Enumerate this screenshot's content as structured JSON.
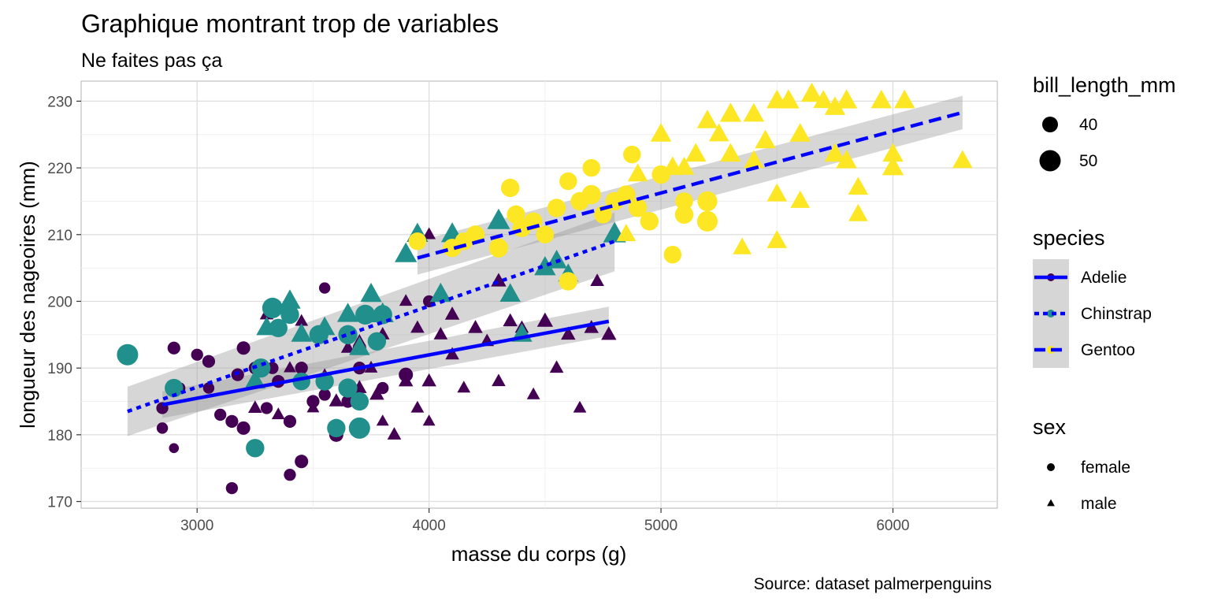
{
  "chart_data": {
    "type": "scatter",
    "title": "Graphique montrant trop de variables",
    "subtitle": "Ne faites pas ça",
    "caption": "Source: dataset palmerpenguins",
    "xlabel": "masse du corps (g)",
    "ylabel": "longueur des nageoires (mm)",
    "xlim": [
      2500,
      6450
    ],
    "ylim": [
      169,
      233
    ],
    "x_ticks": [
      3000,
      4000,
      5000,
      6000
    ],
    "y_ticks": [
      170,
      180,
      190,
      200,
      210,
      220,
      230
    ],
    "x_tick_labels": [
      "3000",
      "4000",
      "5000",
      "6000"
    ],
    "y_tick_labels": [
      "170",
      "180",
      "190",
      "200",
      "210",
      "220",
      "230"
    ],
    "grid": true,
    "colors": {
      "Adelie": "#440154",
      "Chinstrap": "#21908C",
      "Gentoo": "#FDE725",
      "trend": "#0000FF",
      "ribbon": "#999999"
    },
    "legends": {
      "size": {
        "title": "bill_length_mm",
        "entries": [
          {
            "label": "40",
            "value": 40
          },
          {
            "label": "50",
            "value": 50
          }
        ]
      },
      "species": {
        "title": "species",
        "entries": [
          {
            "label": "Adelie",
            "linetype": "solid"
          },
          {
            "label": "Chinstrap",
            "linetype": "dotted"
          },
          {
            "label": "Gentoo",
            "linetype": "dashed"
          }
        ]
      },
      "sex": {
        "title": "sex",
        "entries": [
          {
            "label": "female",
            "shape": "circle"
          },
          {
            "label": "male",
            "shape": "triangle"
          }
        ]
      }
    },
    "series": [
      {
        "name": "Adelie",
        "points": [
          [
            2850,
            184,
            37,
            "female"
          ],
          [
            2850,
            181,
            36,
            "female"
          ],
          [
            2900,
            178,
            34,
            "female"
          ],
          [
            2900,
            193,
            38,
            "female"
          ],
          [
            2925,
            187,
            36,
            "female"
          ],
          [
            3000,
            192,
            37,
            "female"
          ],
          [
            3050,
            191,
            38,
            "female"
          ],
          [
            3050,
            187,
            36,
            "female"
          ],
          [
            3100,
            183,
            37,
            "female"
          ],
          [
            3150,
            182,
            38,
            "female"
          ],
          [
            3150,
            172,
            37,
            "female"
          ],
          [
            3175,
            189,
            38,
            "female"
          ],
          [
            3200,
            193,
            39,
            "female"
          ],
          [
            3200,
            181,
            39,
            "female"
          ],
          [
            3250,
            190,
            38,
            "female"
          ],
          [
            3300,
            184,
            37,
            "female"
          ],
          [
            3325,
            190,
            37,
            "female"
          ],
          [
            3350,
            188,
            38,
            "female"
          ],
          [
            3400,
            174,
            37,
            "female"
          ],
          [
            3400,
            182,
            38,
            "female"
          ],
          [
            3450,
            176,
            39,
            "female"
          ],
          [
            3450,
            190,
            38,
            "female"
          ],
          [
            3500,
            185,
            38,
            "female"
          ],
          [
            3550,
            202,
            36,
            "female"
          ],
          [
            3550,
            186,
            37,
            "female"
          ],
          [
            3600,
            180,
            40,
            "female"
          ],
          [
            3650,
            185,
            38,
            "female"
          ],
          [
            3700,
            193,
            39,
            "female"
          ],
          [
            3700,
            190,
            38,
            "female"
          ],
          [
            3800,
            187,
            37,
            "female"
          ],
          [
            3900,
            189,
            40,
            "female"
          ],
          [
            4000,
            200,
            37,
            "female"
          ],
          [
            3250,
            184,
            40,
            "male"
          ],
          [
            3300,
            198,
            40,
            "male"
          ],
          [
            3350,
            183,
            39,
            "male"
          ],
          [
            3400,
            190,
            38,
            "male"
          ],
          [
            3450,
            197,
            39,
            "male"
          ],
          [
            3500,
            184,
            38,
            "male"
          ],
          [
            3550,
            189,
            37,
            "male"
          ],
          [
            3600,
            185,
            41,
            "male"
          ],
          [
            3650,
            193,
            40,
            "male"
          ],
          [
            3700,
            187,
            41,
            "male"
          ],
          [
            3700,
            194,
            39,
            "male"
          ],
          [
            3750,
            190,
            39,
            "male"
          ],
          [
            3775,
            186,
            41,
            "male"
          ],
          [
            3800,
            195,
            40,
            "male"
          ],
          [
            3800,
            182,
            38,
            "male"
          ],
          [
            3850,
            180,
            40,
            "male"
          ],
          [
            3900,
            188,
            41,
            "male"
          ],
          [
            3900,
            200,
            39,
            "male"
          ],
          [
            3950,
            184,
            39,
            "male"
          ],
          [
            3950,
            196,
            40,
            "male"
          ],
          [
            4000,
            182,
            38,
            "male"
          ],
          [
            4000,
            188,
            41,
            "male"
          ],
          [
            4000,
            210,
            39,
            "male"
          ],
          [
            4050,
            195,
            40,
            "male"
          ],
          [
            4100,
            198,
            41,
            "male"
          ],
          [
            4100,
            192,
            40,
            "male"
          ],
          [
            4150,
            187,
            39,
            "male"
          ],
          [
            4200,
            196,
            41,
            "male"
          ],
          [
            4250,
            194,
            40,
            "male"
          ],
          [
            4300,
            188,
            40,
            "male"
          ],
          [
            4300,
            203,
            42,
            "male"
          ],
          [
            4350,
            197,
            41,
            "male"
          ],
          [
            4400,
            196,
            40,
            "male"
          ],
          [
            4450,
            186,
            39,
            "male"
          ],
          [
            4500,
            197,
            43,
            "male"
          ],
          [
            4550,
            190,
            40,
            "male"
          ],
          [
            4600,
            195,
            41,
            "male"
          ],
          [
            4650,
            184,
            39,
            "male"
          ],
          [
            4700,
            196,
            41,
            "male"
          ],
          [
            4725,
            203,
            40,
            "male"
          ],
          [
            4775,
            195,
            42,
            "male"
          ]
        ]
      },
      {
        "name": "Chinstrap",
        "points": [
          [
            2700,
            192,
            50,
            "female"
          ],
          [
            2900,
            187,
            46,
            "female"
          ],
          [
            3250,
            178,
            46,
            "female"
          ],
          [
            3275,
            190,
            47,
            "female"
          ],
          [
            3325,
            199,
            49,
            "female"
          ],
          [
            3350,
            196,
            46,
            "female"
          ],
          [
            3400,
            198,
            46,
            "female"
          ],
          [
            3450,
            188,
            45,
            "female"
          ],
          [
            3525,
            195,
            47,
            "female"
          ],
          [
            3550,
            188,
            46,
            "female"
          ],
          [
            3600,
            181,
            46,
            "female"
          ],
          [
            3650,
            195,
            47,
            "female"
          ],
          [
            3650,
            187,
            47,
            "female"
          ],
          [
            3700,
            181,
            50,
            "female"
          ],
          [
            3700,
            185,
            46,
            "female"
          ],
          [
            3725,
            198,
            48,
            "female"
          ],
          [
            3775,
            194,
            46,
            "female"
          ],
          [
            3800,
            198,
            47,
            "female"
          ],
          [
            3250,
            188,
            50,
            "male"
          ],
          [
            3300,
            196,
            50,
            "male"
          ],
          [
            3400,
            200,
            51,
            "male"
          ],
          [
            3450,
            195,
            50,
            "male"
          ],
          [
            3550,
            196,
            50,
            "male"
          ],
          [
            3650,
            198,
            51,
            "male"
          ],
          [
            3700,
            193,
            50,
            "male"
          ],
          [
            3750,
            201,
            51,
            "male"
          ],
          [
            3800,
            198,
            52,
            "male"
          ],
          [
            3900,
            207,
            52,
            "male"
          ],
          [
            3950,
            210,
            51,
            "male"
          ],
          [
            4050,
            201,
            51,
            "male"
          ],
          [
            4100,
            210,
            52,
            "male"
          ],
          [
            4300,
            212,
            53,
            "male"
          ],
          [
            4400,
            195,
            50,
            "male"
          ],
          [
            4500,
            205,
            51,
            "male"
          ],
          [
            4550,
            206,
            50,
            "male"
          ],
          [
            4800,
            210,
            53,
            "male"
          ],
          [
            4600,
            204,
            49,
            "male"
          ],
          [
            4350,
            201,
            50,
            "male"
          ]
        ]
      },
      {
        "name": "Gentoo",
        "points": [
          [
            3950,
            209,
            45,
            "female"
          ],
          [
            4100,
            208,
            46,
            "female"
          ],
          [
            4150,
            209,
            45,
            "female"
          ],
          [
            4200,
            210,
            46,
            "female"
          ],
          [
            4300,
            208,
            47,
            "female"
          ],
          [
            4350,
            217,
            46,
            "female"
          ],
          [
            4375,
            213,
            46,
            "female"
          ],
          [
            4400,
            211,
            46,
            "female"
          ],
          [
            4450,
            212,
            45,
            "female"
          ],
          [
            4500,
            210,
            45,
            "female"
          ],
          [
            4550,
            214,
            46,
            "female"
          ],
          [
            4600,
            218,
            45,
            "female"
          ],
          [
            4600,
            203,
            46,
            "female"
          ],
          [
            4650,
            215,
            46,
            "female"
          ],
          [
            4700,
            220,
            45,
            "female"
          ],
          [
            4700,
            216,
            47,
            "female"
          ],
          [
            4750,
            213,
            45,
            "female"
          ],
          [
            4800,
            215,
            46,
            "female"
          ],
          [
            4850,
            216,
            46,
            "female"
          ],
          [
            4875,
            222,
            45,
            "female"
          ],
          [
            4900,
            214,
            46,
            "female"
          ],
          [
            4950,
            212,
            46,
            "female"
          ],
          [
            5000,
            219,
            46,
            "female"
          ],
          [
            5050,
            207,
            45,
            "female"
          ],
          [
            5100,
            215,
            45,
            "female"
          ],
          [
            5100,
            213,
            46,
            "female"
          ],
          [
            5200,
            212,
            49,
            "female"
          ],
          [
            5200,
            215,
            48,
            "female"
          ],
          [
            4850,
            210,
            48,
            "male"
          ],
          [
            4900,
            219,
            49,
            "male"
          ],
          [
            5000,
            225,
            50,
            "male"
          ],
          [
            5050,
            220,
            50,
            "male"
          ],
          [
            5100,
            220,
            49,
            "male"
          ],
          [
            5200,
            227,
            50,
            "male"
          ],
          [
            5250,
            225,
            49,
            "male"
          ],
          [
            5300,
            222,
            50,
            "male"
          ],
          [
            5350,
            208,
            47,
            "male"
          ],
          [
            5400,
            228,
            50,
            "male"
          ],
          [
            5450,
            224,
            50,
            "male"
          ],
          [
            5500,
            230,
            50,
            "male"
          ],
          [
            5500,
            209,
            49,
            "male"
          ],
          [
            5550,
            230,
            51,
            "male"
          ],
          [
            5600,
            225,
            50,
            "male"
          ],
          [
            5650,
            231,
            51,
            "male"
          ],
          [
            5700,
            230,
            49,
            "male"
          ],
          [
            5750,
            229,
            50,
            "male"
          ],
          [
            5750,
            222,
            50,
            "male"
          ],
          [
            5800,
            230,
            51,
            "male"
          ],
          [
            5850,
            217,
            49,
            "male"
          ],
          [
            5850,
            213,
            48,
            "male"
          ],
          [
            5950,
            230,
            50,
            "male"
          ],
          [
            6000,
            222,
            50,
            "male"
          ],
          [
            6000,
            220,
            51,
            "male"
          ],
          [
            6050,
            230,
            50,
            "male"
          ],
          [
            6300,
            221,
            49,
            "male"
          ],
          [
            5400,
            221,
            49,
            "male"
          ],
          [
            5600,
            215,
            48,
            "male"
          ],
          [
            5800,
            221,
            50,
            "male"
          ],
          [
            5300,
            228,
            51,
            "male"
          ],
          [
            5150,
            222,
            50,
            "male"
          ],
          [
            5500,
            216,
            49,
            "male"
          ]
        ]
      }
    ],
    "trend_lines": [
      {
        "series": "Adelie",
        "linetype": "solid",
        "x": [
          2850,
          4775
        ],
        "y": [
          184.5,
          197
        ],
        "se_lower": [
          182.5,
          194.8
        ],
        "se_upper": [
          186.5,
          199.2
        ]
      },
      {
        "series": "Chinstrap",
        "linetype": "dotted",
        "x": [
          2700,
          4800
        ],
        "y": [
          183.5,
          209
        ],
        "se_lower": [
          179.8,
          204.5
        ],
        "se_upper": [
          187.2,
          213.3
        ]
      },
      {
        "series": "Gentoo",
        "linetype": "dashed",
        "x": [
          3950,
          6300
        ],
        "y": [
          206.5,
          228.3
        ],
        "se_lower": [
          204,
          225.8
        ],
        "se_upper": [
          209,
          230.8
        ]
      }
    ]
  }
}
